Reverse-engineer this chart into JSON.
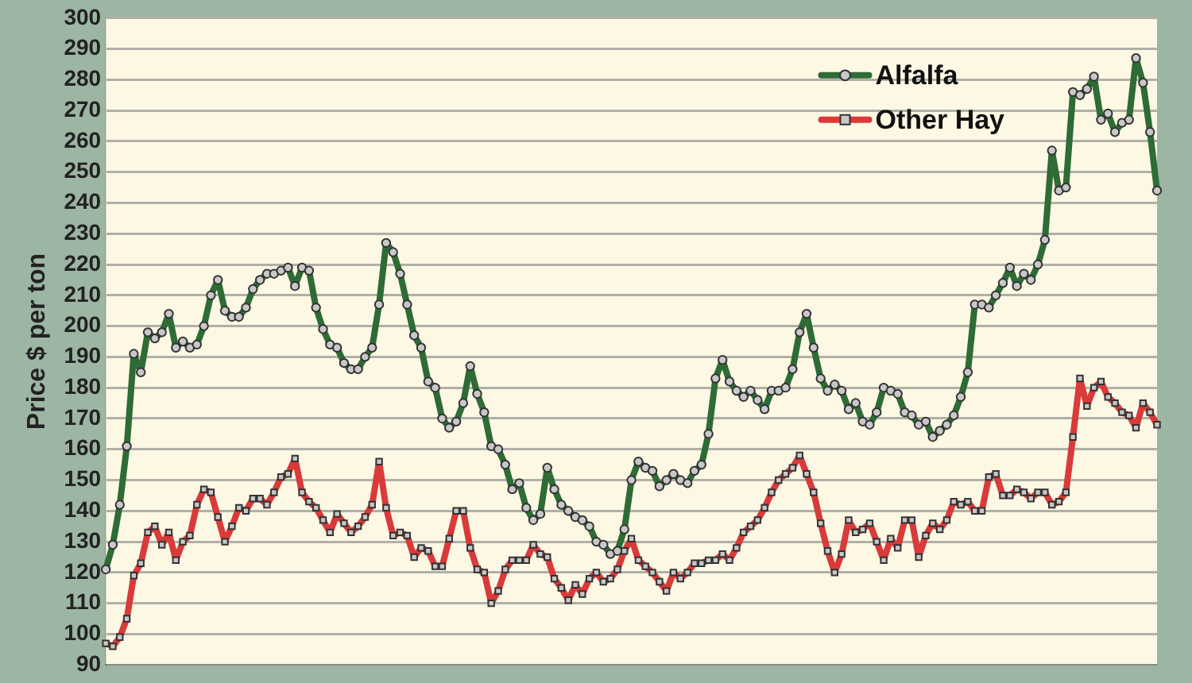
{
  "chart_data": {
    "type": "line",
    "ylabel": "Price $ per ton",
    "ylim": [
      90,
      300
    ],
    "yticks": [
      90,
      100,
      110,
      120,
      130,
      140,
      150,
      160,
      170,
      180,
      190,
      200,
      210,
      220,
      230,
      240,
      250,
      260,
      270,
      280,
      290,
      300
    ],
    "grid": "y",
    "legend": "top right",
    "categories": [
      null,
      null,
      null,
      null,
      null,
      null,
      null,
      null,
      null,
      null,
      null,
      null,
      null,
      null,
      null,
      null,
      null,
      null,
      null,
      null,
      null,
      null,
      null,
      null,
      null,
      null,
      null,
      null,
      null,
      null,
      null,
      null,
      null,
      null,
      null,
      null,
      null,
      null,
      null,
      null,
      null,
      null,
      null,
      null,
      null,
      null,
      null,
      null,
      null,
      null,
      null,
      null,
      null,
      null,
      null,
      null,
      null,
      null,
      null,
      null,
      null,
      null,
      null,
      null,
      null,
      null,
      null,
      null,
      null,
      null,
      null,
      null,
      null,
      null,
      null,
      null,
      null,
      null,
      null,
      null,
      null,
      null,
      null,
      null,
      null,
      null,
      null,
      null,
      null,
      null,
      null,
      null,
      null,
      null,
      null,
      null,
      null,
      null,
      null,
      null,
      null,
      null,
      null,
      null,
      null,
      null,
      null,
      null,
      null,
      null,
      null,
      null,
      null,
      null,
      null,
      null,
      null,
      null,
      null,
      null,
      null,
      null,
      null,
      null,
      null,
      null,
      null,
      null,
      null,
      null,
      null,
      null,
      null,
      null,
      null,
      null,
      null,
      null,
      null,
      null,
      null,
      null,
      null,
      null,
      null,
      null,
      null,
      null,
      null,
      null,
      null
    ],
    "series": [
      {
        "name": "Alfalfa",
        "color": "#2e6b35",
        "marker": "circle",
        "values": [
          121,
          129,
          142,
          161,
          191,
          185,
          198,
          196,
          198,
          204,
          193,
          195,
          193,
          194,
          200,
          210,
          215,
          205,
          203,
          203,
          206,
          212,
          215,
          217,
          217,
          218,
          219,
          213,
          219,
          218,
          206,
          199,
          194,
          193,
          188,
          186,
          186,
          190,
          193,
          207,
          227,
          224,
          217,
          207,
          197,
          193,
          182,
          180,
          170,
          167,
          169,
          175,
          187,
          178,
          172,
          161,
          160,
          155,
          147,
          149,
          141,
          137,
          139,
          154,
          147,
          142,
          140,
          138,
          137,
          135,
          130,
          129,
          126,
          127,
          134,
          150,
          156,
          154,
          153,
          148,
          150,
          152,
          150,
          149,
          153,
          155,
          165,
          183,
          189,
          182,
          179,
          177,
          179,
          176,
          173,
          179,
          179,
          180,
          186,
          198,
          204,
          193,
          183,
          179,
          181,
          179,
          173,
          175,
          169,
          168,
          172,
          180,
          179,
          178,
          172,
          171,
          168,
          169,
          164,
          166,
          168,
          171,
          177,
          185,
          207,
          207,
          206,
          210,
          214,
          219,
          213,
          217,
          215,
          220,
          228,
          257,
          244,
          245,
          276,
          275,
          277,
          281,
          267,
          269,
          263,
          266,
          267,
          287,
          279,
          263,
          244
        ]
      },
      {
        "name": "Other Hay",
        "color": "#d93a3a",
        "marker": "square",
        "values": [
          97,
          96,
          99,
          105,
          119,
          123,
          133,
          135,
          129,
          133,
          124,
          130,
          132,
          142,
          147,
          146,
          138,
          130,
          135,
          141,
          140,
          144,
          144,
          142,
          146,
          151,
          152,
          157,
          146,
          143,
          141,
          137,
          133,
          139,
          136,
          133,
          135,
          138,
          142,
          156,
          141,
          132,
          133,
          132,
          125,
          128,
          127,
          122,
          122,
          131,
          140,
          140,
          128,
          121,
          120,
          110,
          114,
          121,
          124,
          124,
          124,
          129,
          126,
          125,
          118,
          115,
          111,
          116,
          113,
          118,
          120,
          117,
          118,
          121,
          127,
          131,
          124,
          122,
          120,
          117,
          114,
          120,
          118,
          120,
          123,
          123,
          124,
          124,
          126,
          124,
          128,
          133,
          135,
          137,
          141,
          146,
          150,
          152,
          154,
          158,
          152,
          146,
          136,
          127,
          120,
          126,
          137,
          133,
          134,
          136,
          130,
          124,
          131,
          128,
          137,
          137,
          125,
          132,
          136,
          134,
          137,
          143,
          142,
          143,
          140,
          140,
          151,
          152,
          145,
          145,
          147,
          146,
          144,
          146,
          146,
          142,
          143,
          146,
          164,
          183,
          174,
          180,
          182,
          177,
          175,
          172,
          171,
          167,
          175,
          172,
          168
        ]
      }
    ]
  }
}
